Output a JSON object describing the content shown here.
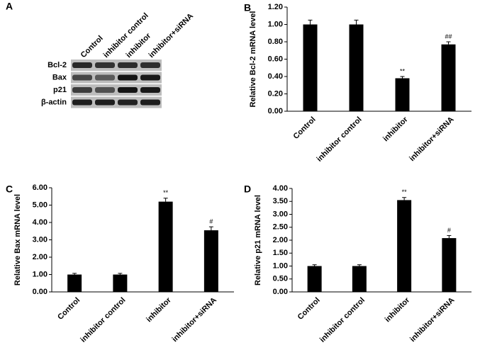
{
  "chart_data": [
    {
      "type": "blot",
      "panel": "A",
      "lanes": [
        "Control",
        "inhibitor control",
        "inhibitor",
        "inhibitor+siRNA"
      ],
      "bands": [
        "Bcl-2",
        "Bax",
        "p21",
        "β-actin"
      ]
    },
    {
      "type": "bar",
      "panel": "B",
      "ylabel": "Relative Bcl-2 mRNA level",
      "categories": [
        "Control",
        "inhibitor control",
        "inhibitor",
        "inhibitor+siRNA"
      ],
      "values": [
        1.0,
        1.0,
        0.38,
        0.77
      ],
      "errors": [
        0.05,
        0.05,
        0.02,
        0.03
      ],
      "annotations": [
        null,
        null,
        "**",
        "##"
      ],
      "color": "#000000",
      "ylim": [
        0,
        1.2
      ],
      "yticks": [
        {
          "value": 0,
          "label": "0.00"
        },
        {
          "value": 0.2,
          "label": "0.20"
        },
        {
          "value": 0.4,
          "label": "0.40"
        },
        {
          "value": 0.6,
          "label": "0.60"
        },
        {
          "value": 0.8,
          "label": "0.80"
        },
        {
          "value": 1.0,
          "label": "1.00"
        },
        {
          "value": 1.2,
          "label": "1.20"
        }
      ]
    },
    {
      "type": "bar",
      "panel": "C",
      "ylabel": "Relative Bax mRNA level",
      "categories": [
        "Control",
        "inhibitor control",
        "inhibitor",
        "inhibitor+siRNA"
      ],
      "values": [
        1.0,
        1.0,
        5.2,
        3.55
      ],
      "errors": [
        0.07,
        0.07,
        0.2,
        0.2
      ],
      "annotations": [
        null,
        null,
        "**",
        "#"
      ],
      "color": "#000000",
      "ylim": [
        0,
        6
      ],
      "yticks": [
        {
          "value": 0,
          "label": "0.00"
        },
        {
          "value": 1,
          "label": "1.00"
        },
        {
          "value": 2,
          "label": "2.00"
        },
        {
          "value": 3,
          "label": "3.00"
        },
        {
          "value": 4,
          "label": "4.00"
        },
        {
          "value": 5,
          "label": "5.00"
        },
        {
          "value": 6,
          "label": "6.00"
        }
      ]
    },
    {
      "type": "bar",
      "panel": "D",
      "ylabel": "Relative p21 mRNA level",
      "categories": [
        "Control",
        "inhibitor control",
        "inhibitor",
        "inhibitor+siRNA"
      ],
      "values": [
        1.0,
        1.0,
        3.55,
        2.08
      ],
      "errors": [
        0.05,
        0.05,
        0.1,
        0.1
      ],
      "annotations": [
        null,
        null,
        "**",
        "#"
      ],
      "color": "#000000",
      "ylim": [
        0,
        4
      ],
      "yticks": [
        {
          "value": 0,
          "label": "0.00"
        },
        {
          "value": 0.5,
          "label": "0.50"
        },
        {
          "value": 1,
          "label": "1.00"
        },
        {
          "value": 1.5,
          "label": "1.50"
        },
        {
          "value": 2,
          "label": "2.00"
        },
        {
          "value": 2.5,
          "label": "2.50"
        },
        {
          "value": 3,
          "label": "3.00"
        },
        {
          "value": 3.5,
          "label": "3.50"
        },
        {
          "value": 4,
          "label": "4.00"
        }
      ]
    }
  ]
}
